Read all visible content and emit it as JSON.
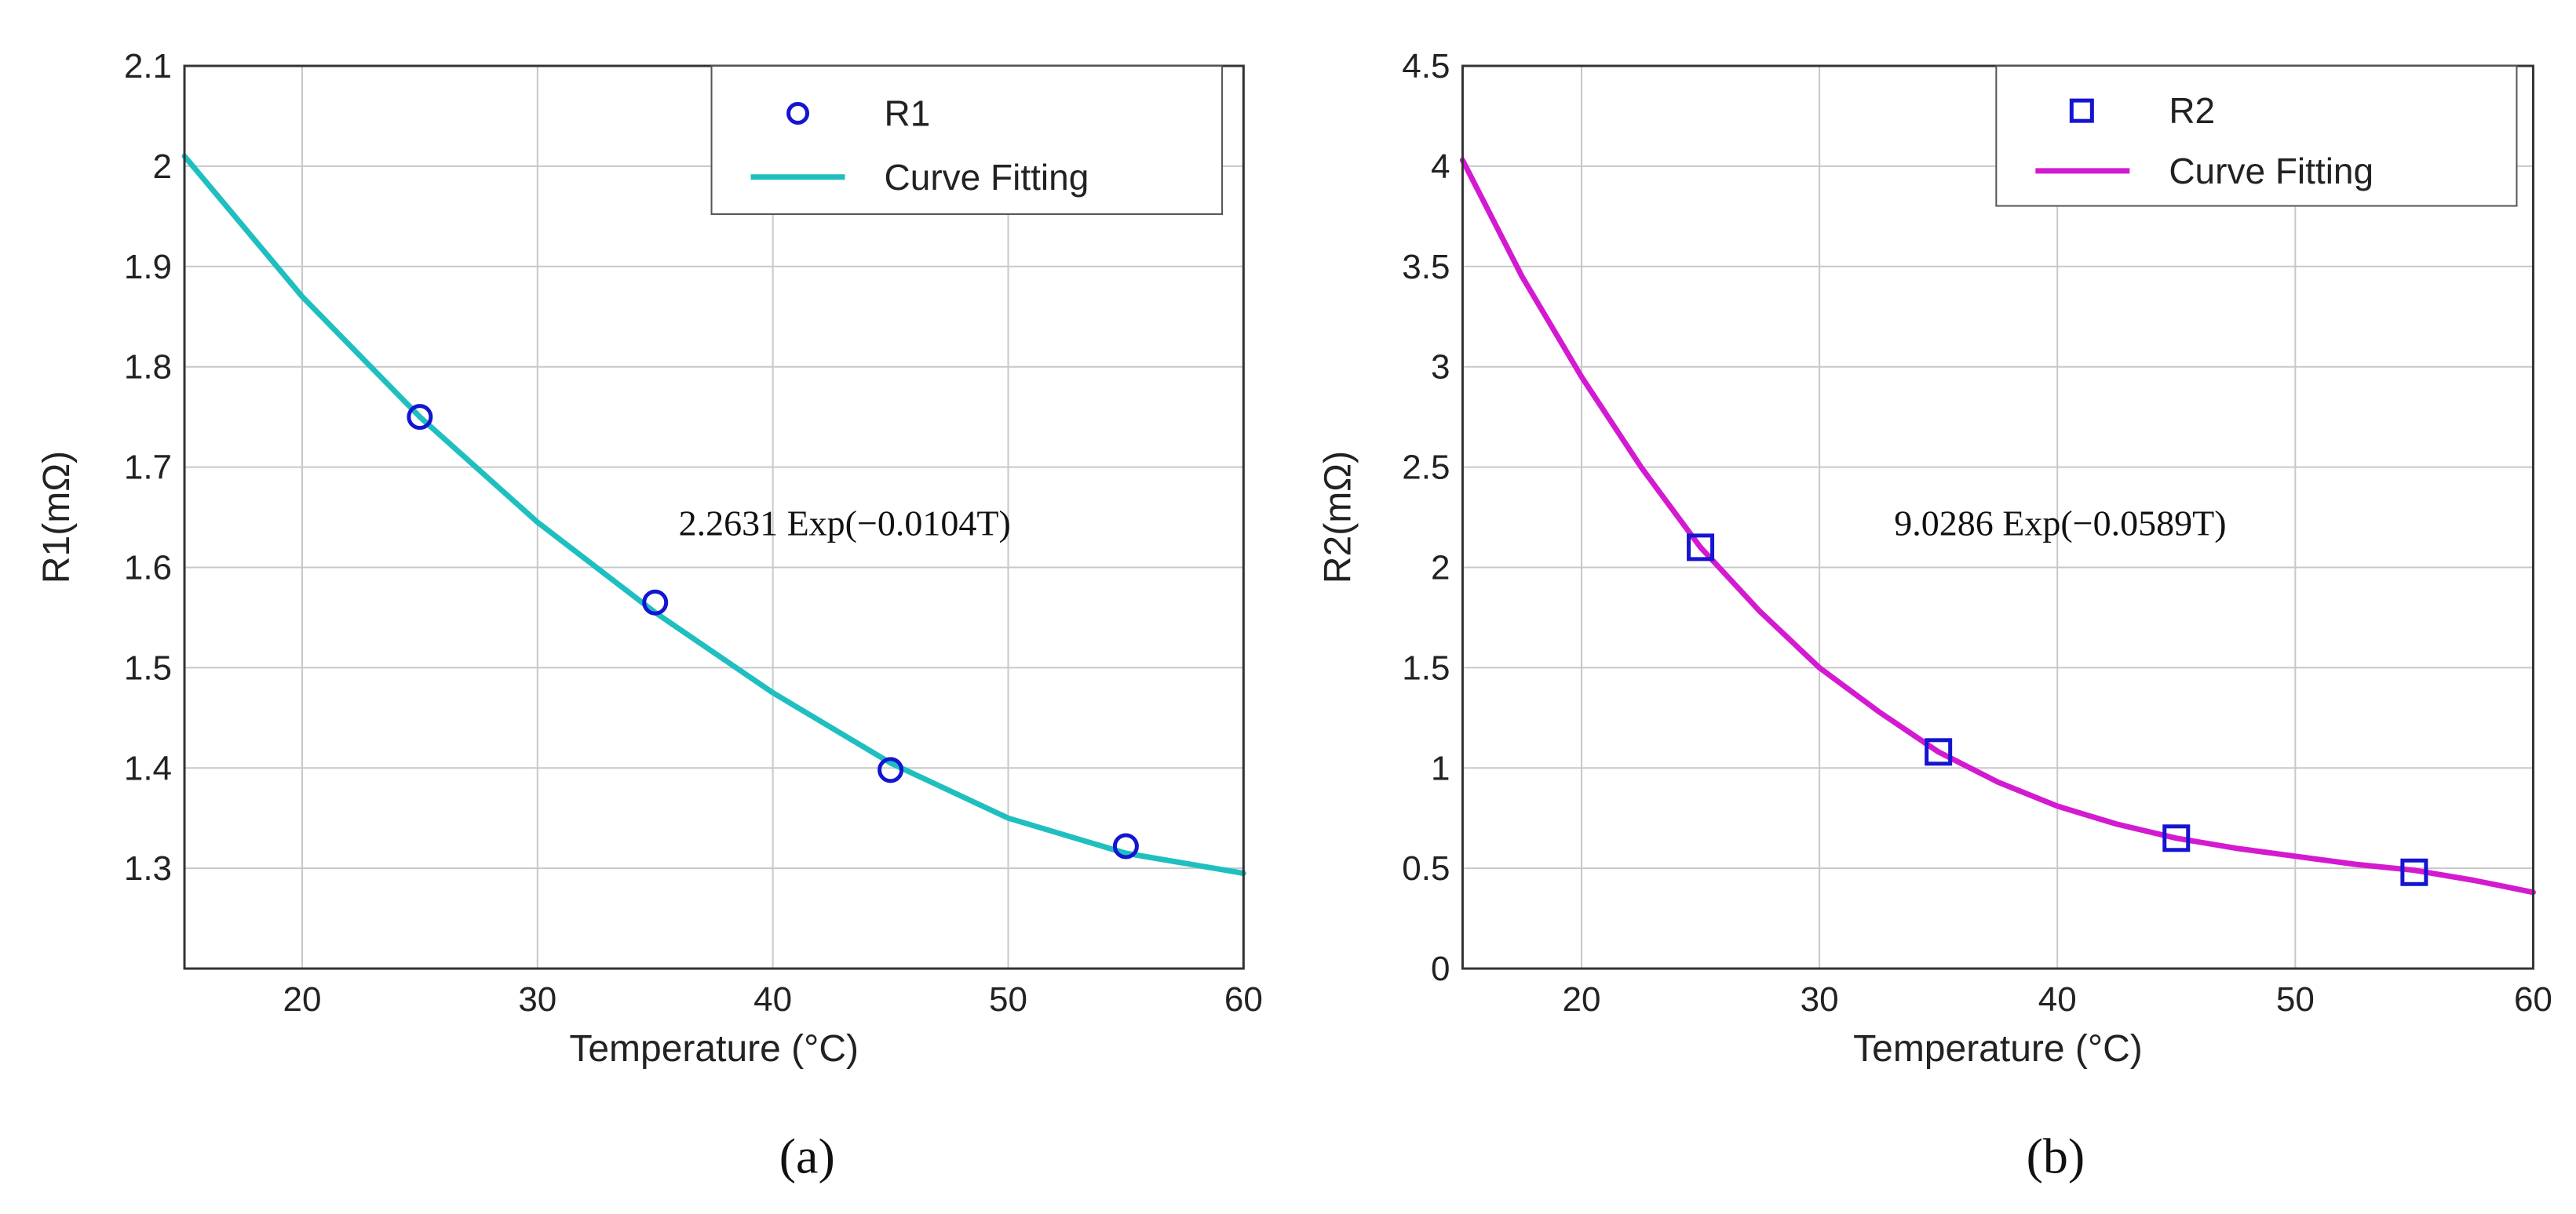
{
  "chart_data": [
    {
      "id": "a",
      "type": "scatter",
      "caption": "(a)",
      "xlabel": "Temperature (°C)",
      "ylabel": "R1(mΩ)",
      "xlim": [
        15,
        60
      ],
      "ylim": [
        1.2,
        2.1
      ],
      "xticks": [
        20,
        30,
        40,
        50,
        60
      ],
      "yticks": [
        1.3,
        1.4,
        1.5,
        1.6,
        1.7,
        1.8,
        1.9,
        2,
        2.1
      ],
      "grid": true,
      "legend_position": "top-right",
      "annotation": "2.2631 Exp(−0.0104T)",
      "series": [
        {
          "name": "R1",
          "kind": "marker",
          "marker": "circle",
          "color": "#1414d2",
          "x": [
            25,
            35,
            45,
            55
          ],
          "y": [
            1.75,
            1.565,
            1.398,
            1.322
          ]
        },
        {
          "name": "Curve Fitting",
          "kind": "line",
          "color": "#1fbfc0",
          "x": [
            15,
            20,
            25,
            30,
            35,
            40,
            45,
            50,
            55,
            60
          ],
          "y": [
            2.01,
            1.87,
            1.75,
            1.645,
            1.555,
            1.475,
            1.405,
            1.35,
            1.315,
            1.295
          ]
        }
      ]
    },
    {
      "id": "b",
      "type": "scatter",
      "caption": "(b)",
      "xlabel": "Temperature (°C)",
      "ylabel": "R2(mΩ)",
      "xlim": [
        15,
        60
      ],
      "ylim": [
        0,
        4.5
      ],
      "xticks": [
        20,
        30,
        40,
        50,
        60
      ],
      "yticks": [
        0,
        0.5,
        1,
        1.5,
        2,
        2.5,
        3,
        3.5,
        4,
        4.5
      ],
      "grid": true,
      "legend_position": "top-right",
      "annotation": "9.0286 Exp(−0.0589T)",
      "series": [
        {
          "name": "R2",
          "kind": "marker",
          "marker": "square",
          "color": "#1414d2",
          "x": [
            25,
            35,
            45,
            55
          ],
          "y": [
            2.1,
            1.08,
            0.65,
            0.48
          ]
        },
        {
          "name": "Curve Fitting",
          "kind": "line",
          "color": "#d41ad0",
          "x": [
            15,
            17.5,
            20,
            22.5,
            25,
            27.5,
            30,
            32.5,
            35,
            37.5,
            40,
            42.5,
            45,
            47.5,
            50,
            52.5,
            55,
            57.5,
            60
          ],
          "y": [
            4.03,
            3.45,
            2.95,
            2.5,
            2.1,
            1.78,
            1.5,
            1.28,
            1.08,
            0.93,
            0.81,
            0.72,
            0.65,
            0.6,
            0.56,
            0.52,
            0.49,
            0.44,
            0.38
          ]
        }
      ]
    }
  ]
}
